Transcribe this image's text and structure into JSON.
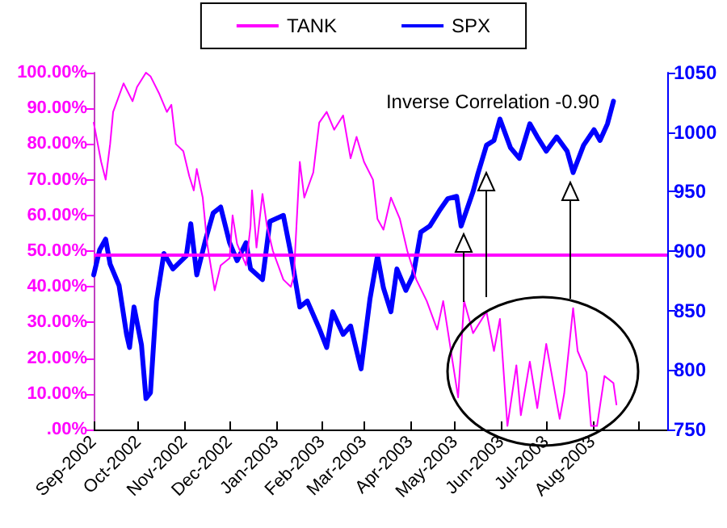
{
  "chart_data": {
    "type": "line",
    "annotations": [
      "Inverse Correlation -0.90"
    ],
    "xlim": [
      "2002-09-01",
      "2003-09-20"
    ],
    "xticks": [
      {
        "value": "2002-09-01",
        "label": "Sep-2002"
      },
      {
        "value": "2002-10-01",
        "label": "Oct-2002"
      },
      {
        "value": "2002-11-01",
        "label": "Nov-2002"
      },
      {
        "value": "2002-12-01",
        "label": "Dec-2002"
      },
      {
        "value": "2003-01-01",
        "label": "Jan-2003"
      },
      {
        "value": "2003-02-01",
        "label": "Feb-2003"
      },
      {
        "value": "2003-03-01",
        "label": "Mar-2003"
      },
      {
        "value": "2003-04-01",
        "label": "Apr-2003"
      },
      {
        "value": "2003-05-01",
        "label": "May-2003"
      },
      {
        "value": "2003-06-01",
        "label": "Jun-2003"
      },
      {
        "value": "2003-07-01",
        "label": "Jul-2003"
      },
      {
        "value": "2003-08-01",
        "label": "Aug-2003"
      },
      {
        "value": "2003-09-01",
        "label": null
      }
    ],
    "ylim": [
      0,
      100
    ],
    "yticks": [
      {
        "value": 0,
        "label": ".00%"
      },
      {
        "value": 10,
        "label": "10.00%"
      },
      {
        "value": 20,
        "label": "20.00%"
      },
      {
        "value": 30,
        "label": "30.00%"
      },
      {
        "value": 40,
        "label": "40.00%"
      },
      {
        "value": 50,
        "label": "50.00%"
      },
      {
        "value": 60,
        "label": "60.00%"
      },
      {
        "value": 70,
        "label": "70.00%"
      },
      {
        "value": 80,
        "label": "80.00%"
      },
      {
        "value": 90,
        "label": "90.00%"
      },
      {
        "value": 100,
        "label": "100.00%"
      }
    ],
    "y2lim": [
      750,
      1050
    ],
    "y2ticks": [
      750,
      800,
      850,
      900,
      950,
      1000,
      1050
    ],
    "grid": false,
    "legend": "top",
    "marker": "none",
    "line_style": "solid",
    "ref_lines": [
      {
        "axis": "y",
        "value": 49,
        "color": "#ff00ff"
      }
    ],
    "series": [
      {
        "name": "TANK",
        "color": "#ff00ff",
        "x": [
          "2002-09-01",
          "2002-09-06",
          "2002-09-09",
          "2002-09-12",
          "2002-09-14",
          "2002-09-21",
          "2002-09-27",
          "2002-09-30",
          "2002-10-06",
          "2002-10-09",
          "2002-10-15",
          "2002-10-20",
          "2002-10-23",
          "2002-10-26",
          "2002-10-31",
          "2002-11-04",
          "2002-11-07",
          "2002-11-09",
          "2002-11-13",
          "2002-11-16",
          "2002-11-21",
          "2002-11-25",
          "2002-12-01",
          "2002-12-03",
          "2002-12-06",
          "2002-12-12",
          "2002-12-15",
          "2002-12-16",
          "2002-12-19",
          "2002-12-23",
          "2002-12-26",
          "2002-12-30",
          "2003-01-06",
          "2003-01-11",
          "2003-01-13",
          "2003-01-17",
          "2003-01-20",
          "2003-01-26",
          "2003-01-30",
          "2003-02-04",
          "2003-02-09",
          "2003-02-15",
          "2003-02-20",
          "2003-02-24",
          "2003-03-01",
          "2003-03-07",
          "2003-03-10",
          "2003-03-14",
          "2003-03-19",
          "2003-03-25",
          "2003-03-30",
          "2003-04-05",
          "2003-04-12",
          "2003-04-19",
          "2003-04-23",
          "2003-05-03",
          "2003-05-07",
          "2003-05-13",
          "2003-05-22",
          "2003-05-27",
          "2003-05-31",
          "2003-06-05",
          "2003-06-11",
          "2003-06-14",
          "2003-06-20",
          "2003-06-25",
          "2003-07-01",
          "2003-07-10",
          "2003-07-13",
          "2003-07-19",
          "2003-07-22",
          "2003-07-28",
          "2003-07-31",
          "2003-08-04",
          "2003-08-09",
          "2003-08-15",
          "2003-08-17"
        ],
        "values": [
          86,
          75,
          70,
          80,
          89,
          97,
          92,
          96,
          100,
          99,
          94,
          89,
          91,
          80,
          78,
          71,
          67,
          73,
          65,
          52,
          39,
          46,
          48,
          60,
          52,
          46,
          57,
          67,
          51,
          66,
          57,
          50,
          42,
          40,
          43,
          75,
          65,
          72,
          86,
          89,
          84,
          88,
          76,
          82,
          75,
          70,
          59,
          56,
          65,
          59,
          50,
          42,
          36,
          28,
          36,
          9,
          36,
          27,
          33,
          22,
          31,
          1,
          18,
          4,
          19,
          6,
          24,
          3,
          10,
          34,
          22,
          16,
          1,
          1,
          15,
          13,
          7
        ]
      },
      {
        "name": "SPX",
        "color": "#0000ff",
        "axis": "y2",
        "x": [
          "2002-09-01",
          "2002-09-05",
          "2002-09-09",
          "2002-09-12",
          "2002-09-18",
          "2002-09-23",
          "2002-09-25",
          "2002-09-28",
          "2002-10-03",
          "2002-10-06",
          "2002-10-09",
          "2002-10-13",
          "2002-10-18",
          "2002-10-24",
          "2002-11-02",
          "2002-11-05",
          "2002-11-09",
          "2002-11-15",
          "2002-11-20",
          "2002-11-25",
          "2002-12-01",
          "2002-12-06",
          "2002-12-12",
          "2002-12-15",
          "2002-12-23",
          "2002-12-28",
          "2003-01-06",
          "2003-01-11",
          "2003-01-17",
          "2003-01-22",
          "2003-01-30",
          "2003-02-04",
          "2003-02-08",
          "2003-02-15",
          "2003-02-20",
          "2003-02-27",
          "2003-03-05",
          "2003-03-10",
          "2003-03-14",
          "2003-03-19",
          "2003-03-23",
          "2003-03-29",
          "2003-04-03",
          "2003-04-08",
          "2003-04-14",
          "2003-04-21",
          "2003-04-26",
          "2003-05-02",
          "2003-05-05",
          "2003-05-13",
          "2003-05-16",
          "2003-05-22",
          "2003-05-27",
          "2003-05-31",
          "2003-06-07",
          "2003-06-13",
          "2003-06-20",
          "2003-06-25",
          "2003-07-01",
          "2003-07-08",
          "2003-07-15",
          "2003-07-19",
          "2003-07-26",
          "2003-08-02",
          "2003-08-06",
          "2003-08-11",
          "2003-08-15"
        ],
        "values": [
          880,
          901,
          910,
          889,
          871,
          830,
          819,
          853,
          821,
          776,
          781,
          858,
          898,
          885,
          896,
          923,
          880,
          910,
          932,
          937,
          907,
          892,
          907,
          885,
          876,
          925,
          930,
          898,
          853,
          858,
          835,
          819,
          849,
          830,
          837,
          801,
          860,
          896,
          869,
          849,
          885,
          867,
          880,
          916,
          921,
          935,
          944,
          946,
          921,
          950,
          964,
          989,
          993,
          1011,
          987,
          978,
          1007,
          996,
          984,
          996,
          984,
          966,
          989,
          1002,
          993,
          1007,
          1026
        ]
      }
    ]
  }
}
